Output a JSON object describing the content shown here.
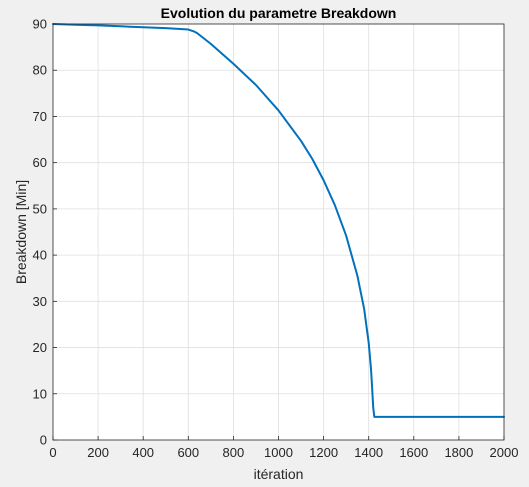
{
  "chart_data": {
    "type": "line",
    "title": "Evolution du parametre Breakdown",
    "xlabel": "itération",
    "ylabel": "Breakdown [Min]",
    "xlim": [
      0,
      2000
    ],
    "ylim": [
      0,
      90
    ],
    "x_ticks": [
      0,
      200,
      400,
      600,
      800,
      1000,
      1200,
      1400,
      1600,
      1800,
      2000
    ],
    "y_ticks": [
      0,
      10,
      20,
      30,
      40,
      50,
      60,
      70,
      80,
      90
    ],
    "grid": true,
    "legend": "none",
    "series": [
      {
        "color": "#0072bd",
        "x": [
          0,
          100,
          200,
          300,
          400,
          500,
          600,
          625,
          640,
          700,
          800,
          900,
          1000,
          1100,
          1150,
          1200,
          1250,
          1300,
          1350,
          1380,
          1400,
          1410,
          1415,
          1420,
          1425,
          1430,
          1500,
          1600,
          1700,
          1800,
          1900,
          2000
        ],
        "y": [
          90,
          89.85,
          89.7,
          89.5,
          89.3,
          89.1,
          88.8,
          88.4,
          88,
          85.7,
          81.4,
          76.8,
          71.3,
          64.7,
          60.8,
          56.2,
          50.8,
          44.2,
          35.5,
          28.3,
          21,
          15.5,
          11.5,
          7,
          5,
          5,
          5,
          5,
          5,
          5,
          5,
          5
        ]
      }
    ]
  }
}
